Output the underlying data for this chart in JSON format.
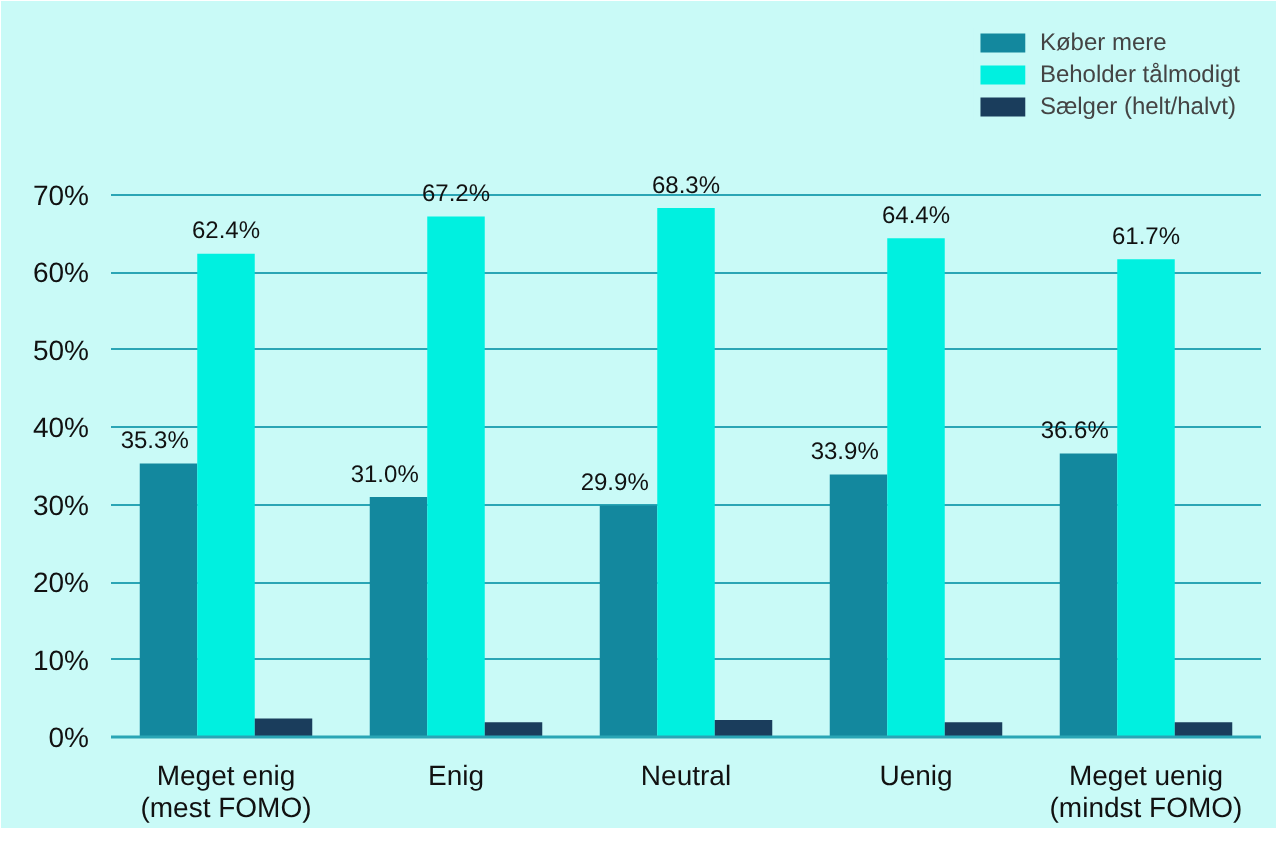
{
  "chart_data": {
    "type": "bar",
    "categories": [
      "Meget enig\n(mest FOMO)",
      "Enig",
      "Neutral",
      "Uenig",
      "Meget uenig\n(mindst FOMO)"
    ],
    "series": [
      {
        "name": "Køber mere",
        "color": "#13889e",
        "values": [
          35.3,
          31.0,
          29.9,
          33.9,
          36.6
        ],
        "value_labels": [
          "35.3%",
          "31.0%",
          "29.9%",
          "33.9%",
          "36.6%"
        ]
      },
      {
        "name": "Beholder tålmodigt",
        "color": "#00f0e0",
        "values": [
          62.4,
          67.2,
          68.3,
          64.4,
          61.7
        ],
        "value_labels": [
          "62.4%",
          "67.2%",
          "68.3%",
          "64.4%",
          "61.7%"
        ]
      },
      {
        "name": "Sælger (helt/halvt)",
        "color": "#1a3d5c",
        "values": [
          2.4,
          1.9,
          2.2,
          1.9,
          1.9
        ]
      }
    ],
    "ylim": [
      0,
      94
    ],
    "yticks": [
      {
        "value": 0,
        "label": "0%"
      },
      {
        "value": 10,
        "label": "10%"
      },
      {
        "value": 20,
        "label": "20%"
      },
      {
        "value": 30,
        "label": "30%"
      },
      {
        "value": 40,
        "label": "40%"
      },
      {
        "value": 50,
        "label": "50%"
      },
      {
        "value": 60,
        "label": "60%"
      },
      {
        "value": 70,
        "label": "70%"
      }
    ],
    "grid": "y",
    "legend": "top right"
  }
}
